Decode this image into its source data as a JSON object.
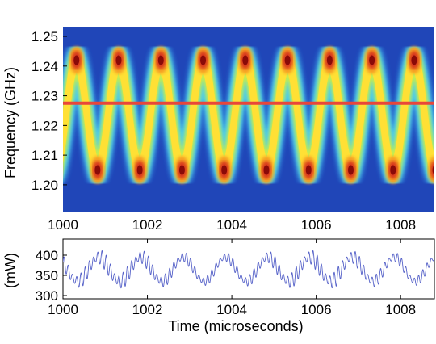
{
  "chart_data": [
    {
      "type": "heatmap",
      "ylabel": "Frequency (GHz)",
      "xlabel": "",
      "xlim": [
        1000,
        1008.8
      ],
      "ylim": [
        1.191,
        1.253
      ],
      "x_ticks": [
        1000,
        1002,
        1004,
        1006,
        1008
      ],
      "y_ticks": [
        1.2,
        1.21,
        1.22,
        1.23,
        1.24,
        1.25
      ],
      "x_tick_labels": [
        "1000",
        "1002",
        "1004",
        "1006",
        "1008"
      ],
      "y_tick_labels": [
        "1.20",
        "1.21",
        "1.22",
        "1.23",
        "1.24",
        "1.25"
      ],
      "sweep": {
        "shape": "sinusoid",
        "center_ghz": 1.2235,
        "amplitude_ghz": 0.0185,
        "period_us": 1.0,
        "first_peak_us": 1000.32,
        "trace_split_ghz": 0.0055
      },
      "reference_line": {
        "frequency_ghz": 1.2275,
        "color": "#e8463a"
      },
      "colormap": [
        "#1a2a86",
        "#2046b8",
        "#2f7fd8",
        "#4fd0e8",
        "#c6ec4e",
        "#ffe035",
        "#f59a22",
        "#d6321c",
        "#8a0a08"
      ]
    },
    {
      "type": "line",
      "xlabel": "Time (microseconds)",
      "ylabel": "(mW)",
      "xlim": [
        1000,
        1008.8
      ],
      "ylim": [
        292,
        440
      ],
      "x_ticks": [
        1000,
        1002,
        1004,
        1006,
        1008
      ],
      "y_ticks": [
        300,
        350,
        400
      ],
      "x_tick_labels": [
        "1000",
        "1002",
        "1004",
        "1006",
        "1008"
      ],
      "y_tick_labels": [
        "300",
        "350",
        "400"
      ],
      "series": [
        {
          "color": "#5561c8",
          "baseline_mw": 365,
          "slow_amplitude_mw": 30,
          "slow_period_us": 1.0,
          "first_peak_us": 1000.85,
          "ripple_amplitude_mw": 17,
          "ripple_period_us": 0.1,
          "x": [
            1000.0,
            1000.25,
            1000.5,
            1000.75,
            1000.85,
            1001.0,
            1001.25,
            1001.5,
            1001.75,
            1001.85,
            1002.0,
            1002.5,
            1002.85,
            1003.5,
            1003.85,
            1004.5,
            1004.85,
            1005.5,
            1005.85,
            1006.5,
            1006.85,
            1007.0,
            1007.5,
            1007.85,
            1008.0,
            1008.5,
            1008.8
          ],
          "values": [
            395,
            372,
            345,
            378,
            404,
            390,
            360,
            338,
            372,
            400,
            392,
            340,
            398,
            338,
            396,
            336,
            400,
            338,
            400,
            336,
            412,
            418,
            340,
            410,
            395,
            330,
            395
          ]
        }
      ]
    }
  ]
}
